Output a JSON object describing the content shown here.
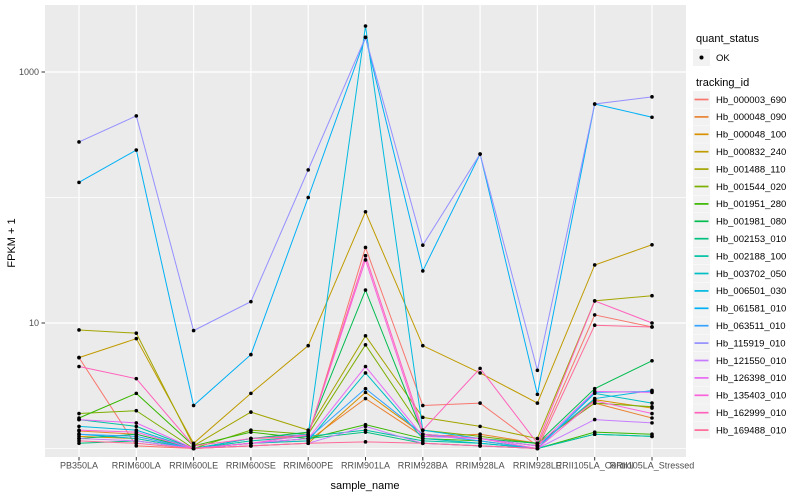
{
  "colors": {
    "panel_bg": "#EBEBEB",
    "grid": "#FFFFFF",
    "key_bg": "#F2F2F2",
    "axis_text": "#4D4D4D",
    "tick_mark": "#333333",
    "point": "#000000",
    "background": "#FFFFFF"
  },
  "chart_data": {
    "type": "line",
    "title": "",
    "xlabel": "sample_name",
    "ylabel": "FPKM + 1",
    "y_scale": "log10",
    "y_ticks": [
      10,
      1000
    ],
    "y_minor": [
      1,
      100
    ],
    "ylim": [
      0.85,
      3400
    ],
    "grid": true,
    "legend_position": "right",
    "point_shape": "black-dot",
    "categories": [
      "PB350LA",
      "RRIM600LA",
      "RRIM600LE",
      "RRIM600SE",
      "RRIM600PE",
      "RRIM901LA",
      "RRIM928BA",
      "RRIM928LA",
      "RRIM928LE",
      "RRII105LA_Control",
      "RRII105LA_Stressed"
    ],
    "legend": {
      "quant_status_title": "quant_status",
      "quant_status_items": [
        "OK"
      ],
      "tracking_title": "tracking_id"
    },
    "series": [
      {
        "name": "Hb_000003_690",
        "color": "#F8766D",
        "values": [
          5.3,
          1.05,
          1.0,
          1.2,
          1.25,
          40,
          2.2,
          2.3,
          1.05,
          11.6,
          9.3
        ]
      },
      {
        "name": "Hb_000048_090",
        "color": "#EA8331",
        "values": [
          1.38,
          1.3,
          1.0,
          1.1,
          1.15,
          2.5,
          1.25,
          1.3,
          1.1,
          2.3,
          1.75
        ]
      },
      {
        "name": "Hb_000048_100",
        "color": "#D89000",
        "values": [
          1.25,
          1.2,
          1.0,
          1.05,
          1.1,
          2.8,
          1.3,
          1.2,
          1.05,
          2.45,
          2.1
        ]
      },
      {
        "name": "Hb_000832_240",
        "color": "#C09B00",
        "values": [
          5.3,
          7.5,
          1.1,
          2.75,
          6.6,
          77,
          6.6,
          4.0,
          2.3,
          29,
          42
        ]
      },
      {
        "name": "Hb_001488_110",
        "color": "#A3A500",
        "values": [
          8.8,
          8.3,
          1.05,
          1.95,
          1.4,
          7.9,
          1.77,
          1.5,
          1.2,
          15,
          16.5
        ]
      },
      {
        "name": "Hb_001544_020",
        "color": "#7CAE00",
        "values": [
          1.9,
          2.0,
          1.0,
          1.4,
          1.3,
          6.7,
          1.4,
          1.25,
          1.1,
          2.3,
          2.15
        ]
      },
      {
        "name": "Hb_001951_280",
        "color": "#39B600",
        "values": [
          1.75,
          2.75,
          1.05,
          1.35,
          1.2,
          1.55,
          1.2,
          1.15,
          1.0,
          1.35,
          1.3
        ]
      },
      {
        "name": "Hb_001981_080",
        "color": "#00BB4E",
        "values": [
          1.2,
          1.3,
          1.0,
          1.2,
          1.35,
          18.3,
          1.3,
          1.2,
          1.1,
          3.0,
          5.0
        ]
      },
      {
        "name": "Hb_002153_010",
        "color": "#00BF7D",
        "values": [
          1.1,
          1.15,
          1.0,
          1.1,
          1.2,
          1.35,
          1.1,
          1.05,
          1.0,
          1.3,
          1.25
        ]
      },
      {
        "name": "Hb_002188_100",
        "color": "#00C1A3",
        "values": [
          1.7,
          1.5,
          1.0,
          1.15,
          1.25,
          1.4,
          1.15,
          1.1,
          1.0,
          1.3,
          1.25
        ]
      },
      {
        "name": "Hb_003702_050",
        "color": "#00BFC4",
        "values": [
          1.3,
          1.2,
          1.0,
          1.1,
          1.15,
          4.0,
          1.2,
          1.1,
          1.0,
          2.75,
          2.3
        ]
      },
      {
        "name": "Hb_006501_030",
        "color": "#00BAE0",
        "values": [
          1.5,
          1.4,
          1.0,
          1.2,
          1.3,
          2325,
          1.4,
          1.2,
          1.05,
          2.5,
          2.9
        ]
      },
      {
        "name": "Hb_061581_010",
        "color": "#00B0F6",
        "values": [
          132,
          239,
          2.2,
          5.6,
          100,
          1890,
          26,
          222,
          2.7,
          556,
          436
        ]
      },
      {
        "name": "Hb_063511_010",
        "color": "#35A2FF",
        "values": [
          1.3,
          1.25,
          1.0,
          1.1,
          1.2,
          3.0,
          1.3,
          1.15,
          1.0,
          2.8,
          2.85
        ]
      },
      {
        "name": "Hb_115919_010",
        "color": "#9590FF",
        "values": [
          277,
          447,
          8.7,
          14.8,
          166,
          1890,
          41.7,
          222,
          4.2,
          556,
          634
        ]
      },
      {
        "name": "Hb_121550_010",
        "color": "#C77CFF",
        "values": [
          1.2,
          1.15,
          1.0,
          1.05,
          1.1,
          1.5,
          1.1,
          1.05,
          1.0,
          1.7,
          1.6
        ]
      },
      {
        "name": "Hb_126398_010",
        "color": "#E76BF3",
        "values": [
          1.7,
          1.6,
          1.0,
          1.1,
          1.2,
          4.5,
          1.25,
          1.2,
          1.05,
          2.85,
          2.8
        ]
      },
      {
        "name": "Hb_135403_010",
        "color": "#FA62DB",
        "values": [
          1.4,
          1.35,
          1.0,
          1.1,
          1.28,
          31.8,
          1.3,
          1.2,
          1.0,
          2.4,
          1.9
        ]
      },
      {
        "name": "Hb_162999_010",
        "color": "#FF62BC",
        "values": [
          4.5,
          3.6,
          1.05,
          1.2,
          1.28,
          34.4,
          1.4,
          4.35,
          1.1,
          15,
          10
        ]
      },
      {
        "name": "Hb_169488_010",
        "color": "#FF6A98",
        "values": [
          1.15,
          1.1,
          1.0,
          1.05,
          1.1,
          1.13,
          1.1,
          1.05,
          1.0,
          9.6,
          9.3
        ]
      }
    ]
  }
}
